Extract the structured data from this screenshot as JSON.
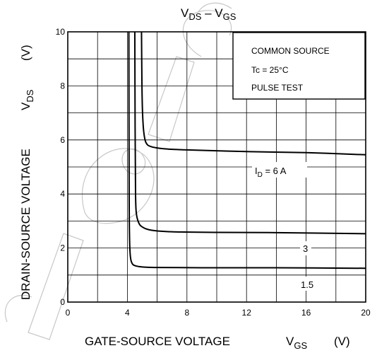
{
  "chart_data": {
    "type": "line",
    "title": {
      "main": "V",
      "sub1": "DS",
      "dash": " – V",
      "sub2": "GS"
    },
    "xlabel": {
      "text": "GATE-SOURCE VOLTAGE",
      "symbol": "V",
      "symbol_sub": "GS",
      "unit": "(V)"
    },
    "ylabel": {
      "text": "DRAIN-SOURCE VOLTAGE",
      "symbol": "V",
      "symbol_sub": "DS",
      "unit": "(V)"
    },
    "xlim": [
      0,
      20
    ],
    "ylim": [
      0,
      10
    ],
    "x_ticks": [
      "0",
      "4",
      "8",
      "12",
      "16",
      "20"
    ],
    "y_ticks": [
      "0",
      "2",
      "4",
      "6",
      "8",
      "10"
    ],
    "grid": true,
    "conditions": [
      "COMMON SOURCE",
      "Tc = 25°C",
      "PULSE TEST"
    ],
    "series": [
      {
        "label": {
          "prefix": "I",
          "sub": "D",
          "suffix": " = 6 A"
        },
        "x": [
          4.95,
          4.98,
          5.02,
          5.1,
          5.25,
          5.6,
          6.5,
          8,
          12,
          16,
          20
        ],
        "y": [
          10.0,
          8.0,
          7.0,
          6.3,
          5.9,
          5.75,
          5.67,
          5.63,
          5.57,
          5.53,
          5.45
        ]
      },
      {
        "label": {
          "prefix": "",
          "sub": "",
          "suffix": "3"
        },
        "x": [
          4.5,
          4.52,
          4.55,
          4.6,
          4.75,
          5.0,
          5.6,
          7,
          10,
          14,
          20
        ],
        "y": [
          10.0,
          6.5,
          4.0,
          3.3,
          2.95,
          2.78,
          2.66,
          2.6,
          2.58,
          2.57,
          2.53
        ]
      },
      {
        "label": {
          "prefix": "",
          "sub": "",
          "suffix": "1.5"
        },
        "x": [
          4.1,
          4.12,
          4.15,
          4.2,
          4.3,
          4.5,
          5.0,
          6,
          9,
          14,
          20
        ],
        "y": [
          10.0,
          4.0,
          2.3,
          1.7,
          1.45,
          1.35,
          1.3,
          1.28,
          1.27,
          1.27,
          1.25
        ]
      }
    ]
  }
}
